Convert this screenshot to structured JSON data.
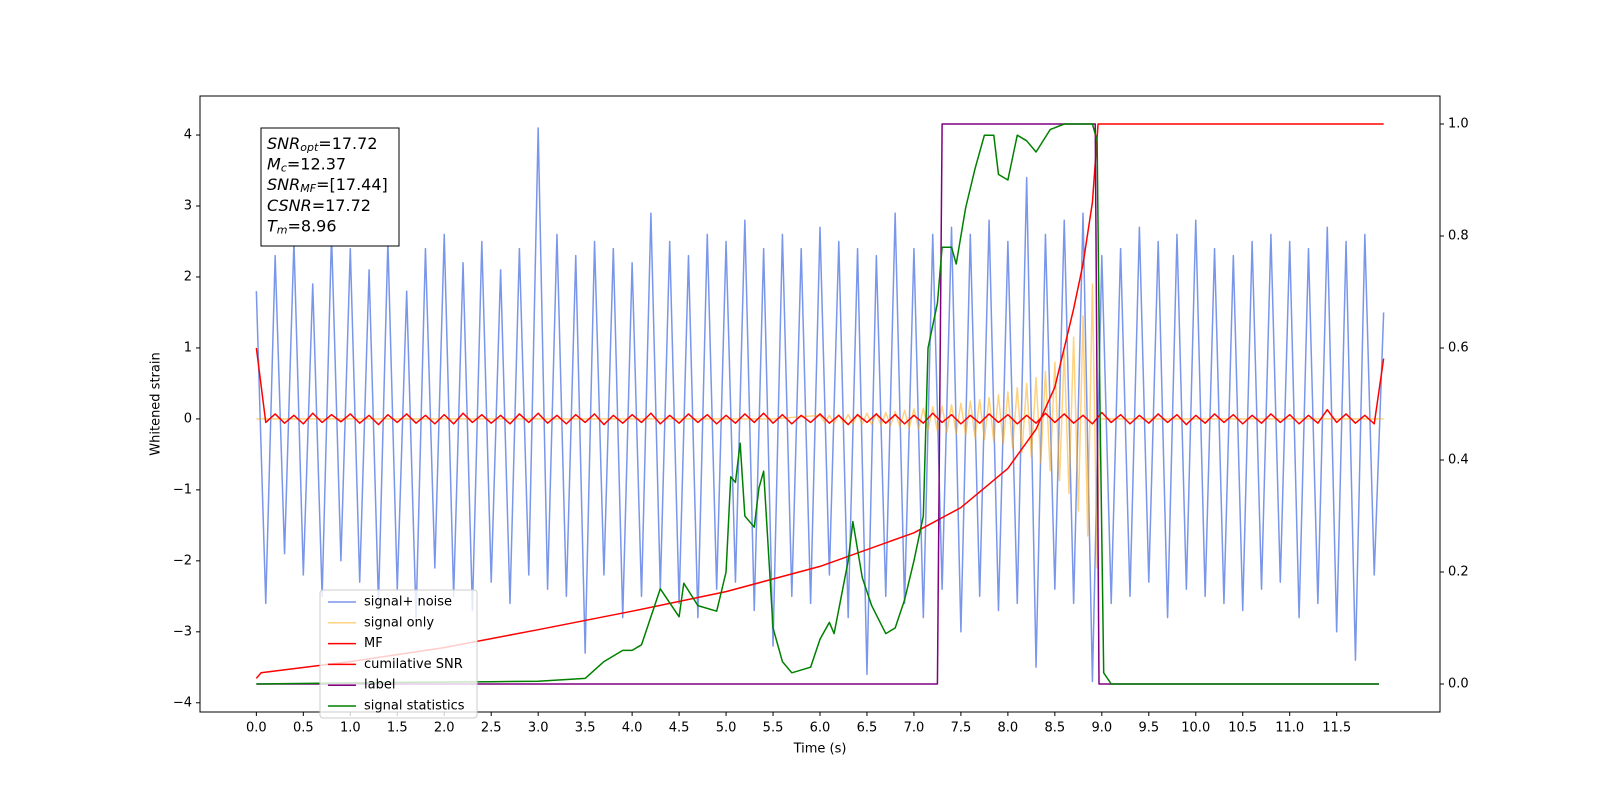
{
  "chart_data": {
    "type": "line",
    "xlabel": "Time (s)",
    "ylabel": "Whitened strain",
    "xlim": [
      -0.6,
      12.6
    ],
    "ylim": [
      -4.13,
      4.55
    ],
    "y2lim": [
      -0.05,
      1.05
    ],
    "xticks": [
      {
        "value": 0,
        "label": "0.0"
      },
      0.5,
      {
        "value": 1,
        "label": "1.0"
      },
      1.5,
      {
        "value": 2,
        "label": "2.0"
      },
      2.5,
      {
        "value": 3,
        "label": "3.0"
      },
      3.5,
      {
        "value": 4,
        "label": "4.0"
      },
      4.5,
      {
        "value": 5,
        "label": "5.0"
      },
      5.5,
      {
        "value": 6,
        "label": "6.0"
      },
      6.5,
      {
        "value": 7,
        "label": "7.0"
      },
      7.5,
      {
        "value": 8,
        "label": "8.0"
      },
      8.5,
      {
        "value": 9,
        "label": "9.0"
      },
      9.5,
      {
        "value": 10,
        "label": "10.0"
      },
      10.5,
      {
        "value": 11,
        "label": "11.0"
      },
      11.5
    ],
    "yticks": [
      {
        "value": -4,
        "label": "−4"
      },
      {
        "value": -3,
        "label": "−3"
      },
      {
        "value": -2,
        "label": "−2"
      },
      {
        "value": -1,
        "label": "−1"
      },
      0,
      1,
      2,
      3,
      4
    ],
    "y2ticks": [
      {
        "value": 0,
        "label": "0.0"
      },
      0.2,
      0.4,
      0.6,
      0.8,
      {
        "value": 1,
        "label": "1.0"
      }
    ],
    "textbox": [
      {
        "symbol": "SNR",
        "sub": "opt",
        "text": "=17.72"
      },
      {
        "symbol": "M",
        "sub": "c",
        "text": "=12.37"
      },
      {
        "symbol": "SNR",
        "sub": "MF",
        "text": "=[17.44]"
      },
      {
        "symbol": "CSNR",
        "text": "=17.72"
      },
      {
        "symbol": "T",
        "sub": "m",
        "text": "=8.96"
      }
    ],
    "x": [
      0,
      0.1,
      0.2,
      0.3,
      0.4,
      0.5,
      0.6,
      0.7,
      0.8,
      0.9,
      1,
      1.1,
      1.2,
      1.3,
      1.4,
      1.5,
      1.6,
      1.7,
      1.8,
      1.9,
      2,
      2.1,
      2.2,
      2.3,
      2.4,
      2.5,
      2.6,
      2.7,
      2.8,
      2.9,
      3,
      3.1,
      3.2,
      3.3,
      3.4,
      3.5,
      3.6,
      3.7,
      3.8,
      3.9,
      4,
      4.1,
      4.2,
      4.3,
      4.4,
      4.5,
      4.6,
      4.7,
      4.8,
      4.9,
      5,
      5.1,
      5.2,
      5.3,
      5.4,
      5.5,
      5.6,
      5.7,
      5.8,
      5.9,
      6,
      6.1,
      6.2,
      6.3,
      6.4,
      6.5,
      6.6,
      6.7,
      6.8,
      6.9,
      7,
      7.1,
      7.2,
      7.3,
      7.4,
      7.5,
      7.6,
      7.7,
      7.8,
      7.9,
      8,
      8.1,
      8.2,
      8.3,
      8.4,
      8.5,
      8.6,
      8.7,
      8.8,
      8.9,
      9,
      9.1,
      9.2,
      9.3,
      9.4,
      9.5,
      9.6,
      9.7,
      9.8,
      9.9,
      10,
      10.1,
      10.2,
      10.3,
      10.4,
      10.5,
      10.6,
      10.7,
      10.8,
      10.9,
      11,
      11.1,
      11.2,
      11.3,
      11.4,
      11.5,
      11.6,
      11.7,
      11.8,
      11.9,
      12
    ],
    "series": [
      {
        "name": "signal+ noise",
        "color": "#4169e1",
        "alpha": 0.7,
        "values": [
          1.8,
          -2.6,
          2.3,
          -1.9,
          2.5,
          -2.2,
          1.9,
          -2.5,
          2.6,
          -2.0,
          2.4,
          -2.3,
          2.1,
          -2.6,
          2.5,
          -2.4,
          1.8,
          -2.8,
          2.4,
          -2.1,
          2.6,
          -2.5,
          2.2,
          -2.7,
          2.5,
          -2.3,
          2.1,
          -2.6,
          2.4,
          -2.2,
          4.1,
          -2.4,
          2.6,
          -2.5,
          2.3,
          -3.3,
          2.5,
          -2.2,
          2.4,
          -2.8,
          2.2,
          -2.5,
          2.9,
          -2.4,
          2.5,
          -2.6,
          2.3,
          -2.8,
          2.6,
          -2.4,
          2.5,
          -2.3,
          2.8,
          -2.7,
          2.4,
          -3.2,
          2.6,
          -2.5,
          2.4,
          -2.6,
          2.7,
          -2.2,
          2.5,
          -2.8,
          2.4,
          -3.6,
          2.3,
          -2.5,
          2.9,
          -2.6,
          2.4,
          -2.8,
          2.6,
          -2.4,
          2.7,
          -3.0,
          2.6,
          -2.5,
          2.8,
          -2.7,
          2.5,
          -2.6,
          3.4,
          -3.5,
          2.6,
          -2.4,
          2.8,
          -2.6,
          2.9,
          -3.7,
          2.3,
          -2.6,
          2.4,
          -2.5,
          2.7,
          -2.3,
          2.5,
          -2.8,
          2.6,
          -2.4,
          2.8,
          -2.5,
          2.4,
          -2.6,
          2.3,
          -2.7,
          2.5,
          -2.4,
          2.6,
          -2.3,
          2.5,
          -2.8,
          2.4,
          -2.6,
          2.7,
          -3.0,
          2.5,
          -3.4,
          2.6,
          -2.2,
          1.5
        ]
      },
      {
        "name": "signal only",
        "color": "#ffa500",
        "alpha": 0.5,
        "x": [
          0,
          5.5,
          6.0,
          6.05,
          6.1,
          6.15,
          6.2,
          6.25,
          6.3,
          6.35,
          6.4,
          6.45,
          6.5,
          6.55,
          6.6,
          6.65,
          6.7,
          6.75,
          6.8,
          6.85,
          6.9,
          6.95,
          7.0,
          7.05,
          7.1,
          7.15,
          7.2,
          7.25,
          7.3,
          7.35,
          7.4,
          7.45,
          7.5,
          7.55,
          7.6,
          7.65,
          7.7,
          7.75,
          7.8,
          7.85,
          7.9,
          7.95,
          8.0,
          8.05,
          8.1,
          8.15,
          8.2,
          8.25,
          8.3,
          8.35,
          8.4,
          8.45,
          8.5,
          8.55,
          8.6,
          8.65,
          8.7,
          8.75,
          8.8,
          8.85,
          8.9,
          8.95,
          8.98,
          12.0
        ],
        "values": [
          0,
          0,
          0.05,
          -0.05,
          0.05,
          -0.06,
          0.06,
          -0.06,
          0.06,
          -0.07,
          0.07,
          -0.07,
          0.08,
          -0.08,
          0.08,
          -0.09,
          0.09,
          -0.1,
          0.1,
          -0.11,
          0.12,
          -0.13,
          0.14,
          -0.14,
          0.15,
          -0.16,
          0.17,
          -0.17,
          0.18,
          -0.19,
          0.2,
          -0.21,
          0.22,
          -0.23,
          0.25,
          -0.26,
          0.27,
          -0.29,
          0.3,
          -0.32,
          0.34,
          -0.36,
          0.38,
          -0.41,
          0.44,
          -0.47,
          0.5,
          -0.54,
          0.58,
          -0.62,
          0.67,
          -0.73,
          0.8,
          -0.87,
          0.95,
          -1.05,
          1.15,
          -1.3,
          1.45,
          -1.65,
          1.9,
          -2.1,
          0,
          0
        ]
      },
      {
        "name": "MF",
        "color": "#ff0000",
        "alpha": 1,
        "values": [
          1.0,
          -0.05,
          0.07,
          -0.06,
          0.05,
          -0.07,
          0.08,
          -0.05,
          0.06,
          -0.04,
          0.07,
          -0.06,
          0.05,
          -0.08,
          0.06,
          -0.05,
          0.07,
          -0.06,
          0.05,
          -0.07,
          0.06,
          -0.07,
          0.08,
          -0.05,
          0.06,
          -0.06,
          0.05,
          -0.07,
          0.07,
          -0.05,
          0.08,
          -0.06,
          0.05,
          -0.07,
          0.06,
          -0.05,
          0.07,
          -0.08,
          0.05,
          -0.06,
          0.06,
          -0.05,
          0.08,
          -0.07,
          0.05,
          -0.06,
          0.07,
          -0.05,
          0.06,
          -0.07,
          0.05,
          -0.06,
          0.07,
          -0.05,
          0.08,
          -0.06,
          0.06,
          -0.07,
          0.05,
          -0.05,
          0.07,
          -0.06,
          0.05,
          -0.08,
          0.06,
          -0.05,
          0.07,
          -0.06,
          0.06,
          -0.07,
          0.05,
          -0.06,
          0.08,
          -0.05,
          0.06,
          -0.07,
          0.05,
          -0.06,
          0.07,
          -0.05,
          0.06,
          -0.07,
          0.05,
          -0.06,
          0.08,
          -0.05,
          0.07,
          -0.06,
          0.05,
          -0.07,
          0.09,
          -0.05,
          0.06,
          -0.07,
          0.05,
          -0.06,
          0.07,
          -0.05,
          0.06,
          -0.08,
          0.05,
          -0.06,
          0.07,
          -0.05,
          0.06,
          -0.07,
          0.05,
          -0.06,
          0.07,
          -0.05,
          0.06,
          -0.07,
          0.05,
          -0.06,
          0.13,
          -0.05,
          0.07,
          -0.06,
          0.05,
          -0.07,
          0.85
        ]
      },
      {
        "name": "cumilative SNR",
        "color": "#ff0000",
        "alpha": 1,
        "axis": "y2",
        "x": [
          0,
          0.05,
          1,
          2,
          3,
          4,
          5,
          6,
          7,
          7.5,
          8,
          8.3,
          8.5,
          8.7,
          8.8,
          8.9,
          8.96,
          12.0
        ],
        "values": [
          0.01,
          0.02,
          0.04,
          0.065,
          0.097,
          0.13,
          0.165,
          0.21,
          0.27,
          0.315,
          0.385,
          0.455,
          0.53,
          0.67,
          0.75,
          0.86,
          1.0,
          1.0
        ]
      },
      {
        "name": "label",
        "color": "#800080",
        "alpha": 1,
        "axis": "y2",
        "x": [
          0,
          7.25,
          7.3,
          8.93,
          8.97,
          11.95
        ],
        "values": [
          0,
          0,
          1,
          1,
          0,
          0
        ]
      },
      {
        "name": "signal statistics",
        "color": "#008000",
        "alpha": 1,
        "axis": "y2",
        "x": [
          0,
          1.5,
          2.5,
          3.0,
          3.5,
          3.7,
          3.9,
          4.0,
          4.1,
          4.3,
          4.5,
          4.55,
          4.7,
          4.9,
          5.0,
          5.05,
          5.1,
          5.15,
          5.2,
          5.3,
          5.35,
          5.4,
          5.5,
          5.6,
          5.7,
          5.9,
          6.0,
          6.1,
          6.15,
          6.3,
          6.35,
          6.45,
          6.55,
          6.7,
          6.8,
          6.9,
          7.0,
          7.1,
          7.15,
          7.25,
          7.3,
          7.4,
          7.45,
          7.55,
          7.65,
          7.75,
          7.85,
          7.9,
          8.0,
          8.1,
          8.2,
          8.3,
          8.45,
          8.6,
          8.9,
          8.95,
          8.98,
          9.02,
          9.1,
          11.95
        ],
        "values": [
          0,
          0.003,
          0.004,
          0.005,
          0.01,
          0.04,
          0.06,
          0.06,
          0.07,
          0.17,
          0.12,
          0.18,
          0.14,
          0.13,
          0.2,
          0.37,
          0.36,
          0.43,
          0.3,
          0.28,
          0.35,
          0.38,
          0.1,
          0.04,
          0.02,
          0.03,
          0.08,
          0.11,
          0.09,
          0.22,
          0.29,
          0.19,
          0.14,
          0.09,
          0.1,
          0.15,
          0.22,
          0.3,
          0.6,
          0.68,
          0.78,
          0.78,
          0.75,
          0.85,
          0.92,
          0.98,
          0.98,
          0.91,
          0.9,
          0.98,
          0.97,
          0.95,
          0.99,
          1.0,
          1.0,
          0.97,
          0.5,
          0.02,
          0,
          0
        ]
      }
    ]
  }
}
